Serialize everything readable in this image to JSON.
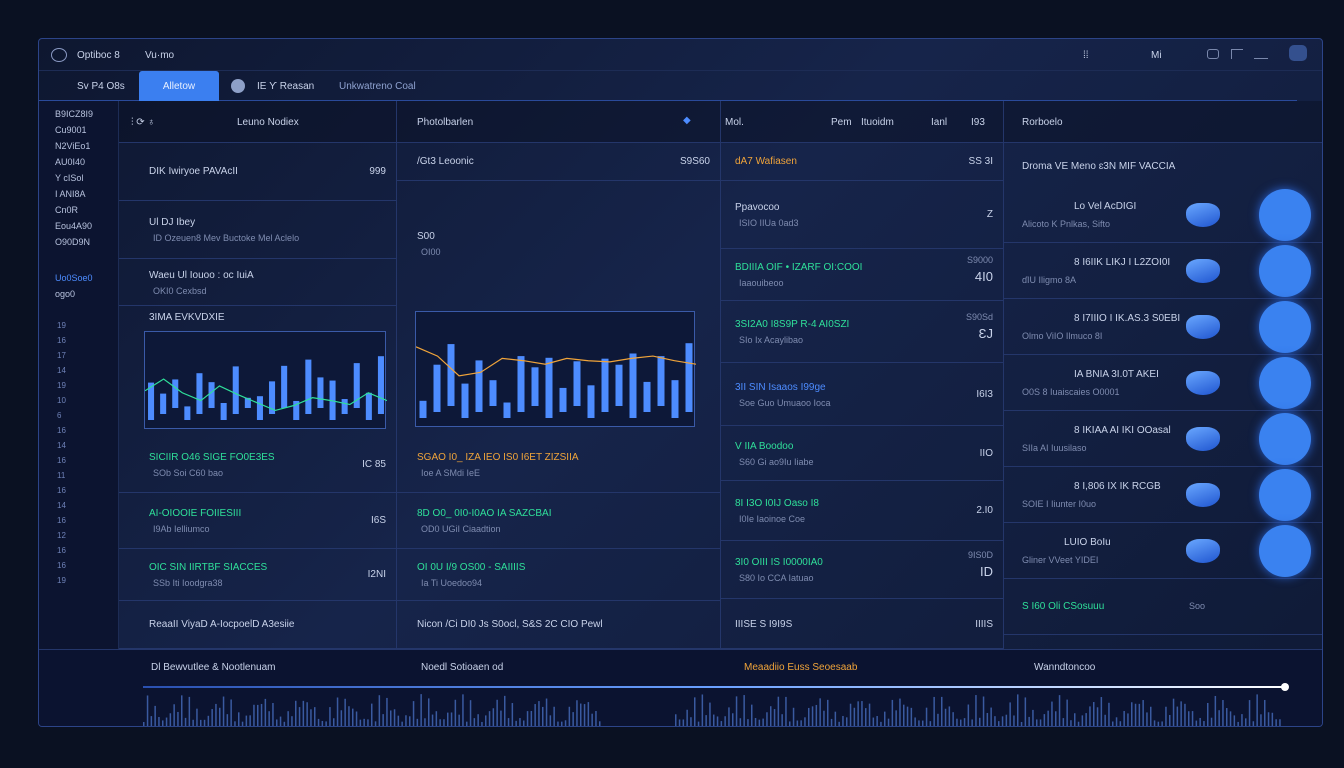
{
  "title": {
    "app": "Optiboc 8",
    "sub": "Vu·mo",
    "right": [
      "⁞⁞",
      "Mi"
    ]
  },
  "tabs": {
    "left": "Sv P4 O8s",
    "active": "Alletow",
    "rest": "IE Ƴ Reasan",
    "rest2": "Unkwatreno Coal"
  },
  "sidebar": [
    "B9ICZ8I9",
    "Cu9001",
    "N2ViEo1",
    "AU0I40",
    "Y cISol",
    "I ANI8A",
    "Cn0R",
    "Eou4A90",
    "O90D9N",
    "Uo0Soe0",
    "ogo0"
  ],
  "sidebar_ticks": [
    "19",
    "16",
    "17",
    "14",
    "19",
    "10",
    "6",
    "16",
    "14",
    "16",
    "11",
    "16",
    "14",
    "16",
    "12",
    "16",
    "16",
    "19"
  ],
  "col1": {
    "header": "Leuno Nodiex",
    "rows": [
      {
        "a": "DIK Iwiryoe  PAVAcII",
        "v": "999"
      },
      {
        "a": "Ul  DJ  Ibey",
        "b": "ID  Ozeuen8  Mev  Buctoke  Mel  Aclelo"
      },
      {
        "a": "Waeu   Ul Iouoo : oc IuiA",
        "b": "OKI0  Cexbsd"
      },
      {
        "a": "3IMA  EVKVDXIE"
      },
      {
        "a": "SICIIR  O46  SIGE FO0E3ES",
        "b": "SOb  Soi  C60 bao",
        "v": "IC 85",
        "c": "g"
      },
      {
        "a": "AI-OIOOIE FOIIESIII",
        "b": "I9Ab  Ielliumco",
        "v": "I6S",
        "c": "g"
      },
      {
        "a": "OIC SIN  IIRTBF SIACCES",
        "b": "SSb  Iti  Ioodgra38",
        "v": "I2NI",
        "c": "g"
      },
      {
        "a": "ReaaII  ViyaD  A-IocpoelD  A3esiie"
      }
    ]
  },
  "col2": {
    "header": "Photolbarlen",
    "rows": [
      {
        "a": "/Gt3   Leoonic",
        "v": "S9S60"
      },
      {
        "a": "S00",
        "b": "OI00"
      },
      {
        "a": "SGAO  I0_  IZA IEO IS0  I6ET ZIZSIIA",
        "b": "Ioe  A  SMdi  IeE",
        "c": "o"
      },
      {
        "a": "8D  O0_  0I0-I0AO  IA  SAZCBAI",
        "b": "OD0  UGiI  Ciaadtion",
        "c": "g"
      },
      {
        "a": "OI  0U  I/9  OS00  -  SAIIIIS",
        "b": "Ia  Ti  Uoedoo94",
        "c": "g"
      },
      {
        "a": "Nicon  /Ci  DI0  Js  S0ocl,  S&S  2C  CIO Pewl"
      }
    ]
  },
  "col3": {
    "header": [
      "Mol.",
      "Pem",
      "Ituoidm",
      "Ianl",
      "I93"
    ],
    "rows": [
      {
        "a": "dA7 Wafiasen",
        "v": "SS 3I",
        "c": "o"
      },
      {
        "a": "Ppavocoo",
        "b": "ISIO  IIUa 0ad3",
        "v": "Z"
      },
      {
        "a": "BDIIIA  OIF • IZARF OI:COOI",
        "b": "Iaaouibeoo",
        "v": "4I0",
        "u": "S9000",
        "c": "g"
      },
      {
        "a": "3SI2A0  I8S9P R-4  AI0SZI",
        "b": "SIo  Ix Acaylibao",
        "v": "ƐJ",
        "u": "S90Sd",
        "c": "g"
      },
      {
        "a": "3II  SIN   Isaaos  I99ge",
        "b": "Soe  Guo Umuaoo Ioca",
        "v": "I6I3",
        "c": "b"
      },
      {
        "a": "V  IIA  Boodoo",
        "b": "S60  Gi  ao9Iu Iiabe",
        "v": "IIO",
        "c": "g"
      },
      {
        "a": "8I  I3O   I0IJ  Oaso I8",
        "b": "I0Ie  Iaoinoe Coe",
        "v": "2.I0",
        "c": "g"
      },
      {
        "a": "3I0  OIII   IS  I0000IA0",
        "b": "S80  Io CCA  Iatuao",
        "v": "ID",
        "u": "9IS0D",
        "c": "g"
      },
      {
        "a": "IIISE  S  I9I9S",
        "v": "IIIIS"
      }
    ]
  },
  "col4": {
    "header": "Rorboelo",
    "sub": "Droma VE  Meno  ɛ3N  MIF VACCIA",
    "rows": [
      {
        "a": "Lo  Vel  AcDIGI",
        "b": "Alicoto K Pnlkas,  Sifto"
      },
      {
        "a": "8  I6IIK  LIKJ  I  L2ZOI0I",
        "b": "ɗIU     Iligmo 8A"
      },
      {
        "a": "8  I7IIIO  I  IK.AS.3  S0EBI",
        "b": "Olmo  ViIO   Ilmuco 8I"
      },
      {
        "a": "IA  BNIA   3I.0T  AKEI",
        "b": "O0S  8    Iuaiscaies  O0001"
      },
      {
        "a": "8  IKIAA    AI  IKI  OOasal",
        "b": "SIIa     AI Iuusilaso"
      },
      {
        "a": "8  I,806    IX  IK  RCGB",
        "b": "SOIE    I Iiunter  I0uo"
      },
      {
        "a": "LUIO  BoIu",
        "b": "Gliner  VVeet  YIDEI"
      },
      {
        "a": "S  I60  Oli  CSosuuu",
        "v": "Soo"
      }
    ]
  },
  "bottom": {
    "items": [
      "Dl Bewvutlee  &  Nootlenuam",
      "Noedl  Sotioaen  od",
      "Meaadiio  Euss  Seoesaab",
      "Wanndtoncoo"
    ],
    "progress": 0.99
  },
  "charts": [
    {
      "type": "bar",
      "bars": [
        55,
        30,
        42,
        20,
        60,
        38,
        25,
        70,
        15,
        35,
        48,
        62,
        28,
        80,
        45,
        58,
        22,
        66,
        40,
        85
      ],
      "line": [
        40,
        52,
        38,
        30,
        45,
        36,
        28,
        20,
        25,
        33,
        30,
        26,
        38,
        30
      ]
    },
    {
      "type": "bar",
      "bars": [
        20,
        55,
        72,
        40,
        60,
        30,
        18,
        65,
        45,
        70,
        28,
        52,
        38,
        62,
        48,
        75,
        35,
        58,
        44,
        80
      ],
      "line": [
        70,
        62,
        45,
        48,
        60,
        58,
        55,
        60,
        58,
        57,
        60,
        62,
        58,
        55
      ]
    }
  ],
  "colors": {
    "accent": "#3b7ff0",
    "positive": "#2fe09a",
    "warning": "#f0a43a",
    "background": "#0a1122"
  }
}
